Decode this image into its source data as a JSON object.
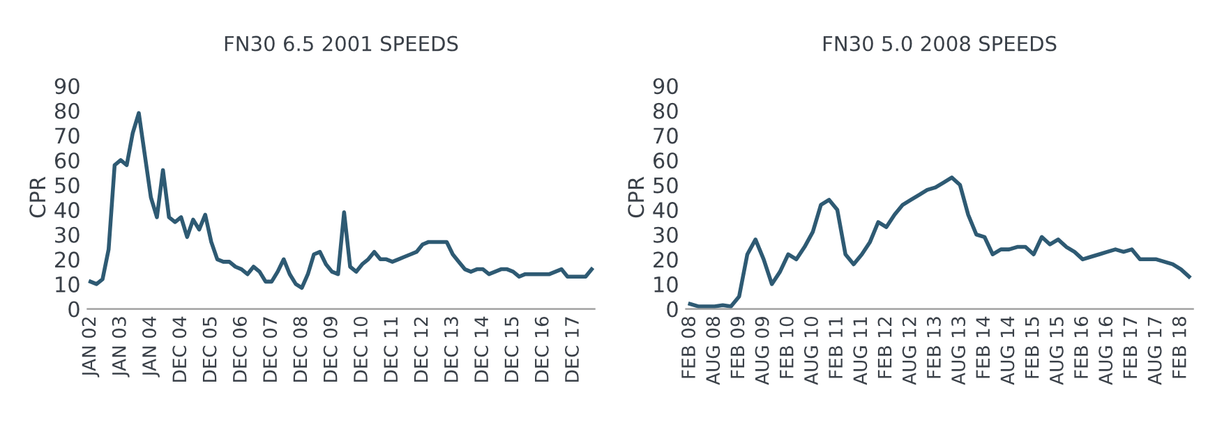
{
  "chart_data": [
    {
      "type": "line",
      "title": "FN30 6.5 2001 SPEEDS",
      "ylabel": "CPR",
      "ylim": [
        0,
        90
      ],
      "yticks": [
        0,
        10,
        20,
        30,
        40,
        50,
        60,
        70,
        80,
        90
      ],
      "grid": false,
      "legend": false,
      "categories": [
        "JAN 02",
        null,
        null,
        null,
        null,
        "JAN 03",
        null,
        null,
        null,
        null,
        "JAN 04",
        null,
        null,
        null,
        null,
        "DEC 04",
        null,
        null,
        null,
        null,
        "DEC 05",
        null,
        null,
        null,
        null,
        "DEC 06",
        null,
        null,
        null,
        null,
        "DEC 07",
        null,
        null,
        null,
        null,
        "DEC 08",
        null,
        null,
        null,
        null,
        "DEC 09",
        null,
        null,
        null,
        null,
        "DEC 10",
        null,
        null,
        null,
        null,
        "DEC 11",
        null,
        null,
        null,
        null,
        "DEC 12",
        null,
        null,
        null,
        null,
        "DEC 13",
        null,
        null,
        null,
        null,
        "DEC 14",
        null,
        null,
        null,
        null,
        "DEC 15",
        null,
        null,
        null,
        null,
        "DEC 16",
        null,
        null,
        null,
        null,
        "DEC 17",
        null,
        null,
        null
      ],
      "series": [
        {
          "color": "#2e5a73",
          "values": [
            11,
            10,
            12,
            24,
            58,
            60,
            58,
            71,
            79,
            62,
            45,
            37,
            56,
            37,
            35,
            37,
            29,
            36,
            32,
            38,
            27,
            20,
            19,
            19,
            17,
            16,
            14,
            17,
            15,
            11,
            11,
            15,
            20,
            14,
            10,
            8.5,
            14,
            22,
            23,
            18,
            15,
            14,
            39,
            17,
            15,
            18,
            20,
            23,
            20,
            20,
            19,
            20,
            21,
            22,
            23,
            26,
            27,
            27,
            27,
            27,
            22,
            19,
            16,
            15,
            16,
            16,
            14,
            15,
            16,
            16,
            15,
            13,
            14,
            14,
            14,
            14,
            14,
            15,
            16,
            13,
            13,
            13,
            13,
            16
          ]
        }
      ]
    },
    {
      "type": "line",
      "title": "FN30 5.0 2008 SPEEDS",
      "ylabel": "CPR",
      "ylim": [
        0,
        90
      ],
      "yticks": [
        0,
        10,
        20,
        30,
        40,
        50,
        60,
        70,
        80,
        90
      ],
      "grid": false,
      "legend": false,
      "categories": [
        "FEB 08",
        null,
        null,
        "AUG 08",
        null,
        null,
        "FEB 09",
        null,
        null,
        "AUG 09",
        null,
        null,
        "FEB 10",
        null,
        null,
        "AUG 10",
        null,
        null,
        "FEB 11",
        null,
        null,
        "AUG 11",
        null,
        null,
        "FEB 12",
        null,
        null,
        "AUG 12",
        null,
        null,
        "FEB 13",
        null,
        null,
        "AUG 13",
        null,
        null,
        "FEB 14",
        null,
        null,
        "AUG 14",
        null,
        null,
        "FEB 15",
        null,
        null,
        "AUG 15",
        null,
        null,
        "FEB 16",
        null,
        null,
        "AUG 16",
        null,
        null,
        "FEB 17",
        null,
        null,
        "AUG 17",
        null,
        null,
        "FEB 18",
        null
      ],
      "series": [
        {
          "color": "#2e5a73",
          "values": [
            2,
            1,
            1,
            1,
            1.5,
            1,
            5,
            22,
            28,
            20,
            10,
            15,
            22,
            20,
            25,
            31,
            42,
            44,
            40,
            22,
            18,
            22,
            27,
            35,
            33,
            38,
            42,
            44,
            46,
            48,
            49,
            51,
            53,
            50,
            38,
            30,
            29,
            22,
            24,
            24,
            25,
            25,
            22,
            29,
            26,
            28,
            25,
            23,
            20,
            21,
            22,
            23,
            24,
            23,
            24,
            20,
            20,
            20,
            19,
            18,
            16,
            13
          ]
        }
      ]
    }
  ]
}
